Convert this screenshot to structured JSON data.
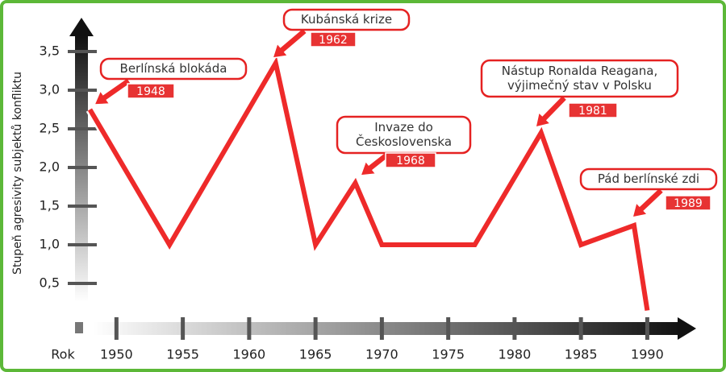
{
  "chart_data": {
    "type": "line",
    "y_label": "Stupeň agresivity subjektů konfliktu",
    "x_label": "Rok",
    "x": [
      1948,
      1954,
      1962,
      1965,
      1968,
      1970,
      1977,
      1982,
      1985,
      1989,
      1990
    ],
    "series": [
      {
        "color": "#ee2a2a",
        "values": [
          2.75,
          1.0,
          3.35,
          1.0,
          1.8,
          1.0,
          1.0,
          2.45,
          1.0,
          1.25,
          0.15
        ]
      }
    ],
    "xlim": [
      1947,
      1993.5
    ],
    "ylim": [
      0,
      3.9
    ],
    "xticks": [
      1950,
      1955,
      1960,
      1965,
      1970,
      1975,
      1980,
      1985,
      1990
    ],
    "yticks": [
      {
        "value": 0.5,
        "label": "0,5"
      },
      {
        "value": 1.0,
        "label": "1,0"
      },
      {
        "value": 1.5,
        "label": "1,5"
      },
      {
        "value": 2.0,
        "label": "2,0"
      },
      {
        "value": 2.5,
        "label": "2,5"
      },
      {
        "value": 3.0,
        "label": "3,0"
      },
      {
        "value": 3.5,
        "label": "3,5"
      }
    ],
    "annotations": [
      {
        "text": [
          "Berlínská blokáda"
        ],
        "label": "1948"
      },
      {
        "text": [
          "Kubánská krize"
        ],
        "label": "1962"
      },
      {
        "text": [
          "Invaze do",
          "Československa"
        ],
        "label": "1968"
      },
      {
        "text": [
          "Nástup Ronalda Reagana,",
          "výjimečný stav v Polsku"
        ],
        "label": "1981"
      },
      {
        "text": [
          "Pád berlínské zdi"
        ],
        "label": "1989"
      }
    ]
  }
}
